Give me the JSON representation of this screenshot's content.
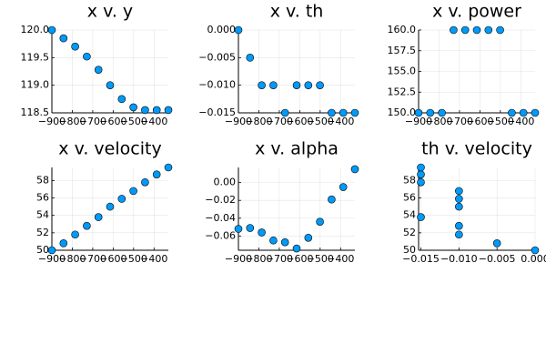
{
  "chart_data": [
    {
      "type": "scatter",
      "title": "x v. y",
      "color": "#009af9",
      "grid": true,
      "x": [
        -900,
        -843,
        -786,
        -729,
        -672,
        -615,
        -558,
        -501,
        -444,
        -387,
        -330
      ],
      "values": [
        120,
        119.85,
        119.7,
        119.52,
        119.28,
        119.0,
        118.75,
        118.6,
        118.55,
        118.55,
        118.55
      ],
      "xlim": [
        -900,
        -330
      ],
      "ylim": [
        118.5,
        120
      ],
      "xticks": [
        {
          "value": -900,
          "label": "−900"
        },
        {
          "value": -800,
          "label": "−800"
        },
        {
          "value": -700,
          "label": "−700"
        },
        {
          "value": -600,
          "label": "−600"
        },
        {
          "value": -500,
          "label": "−500"
        },
        {
          "value": -400,
          "label": "−400"
        }
      ],
      "yticks": [
        118.5,
        {
          "value": 119,
          "label": "119.0"
        },
        119.5,
        {
          "value": 120,
          "label": "120.0"
        }
      ]
    },
    {
      "type": "scatter",
      "title": "x v. th",
      "color": "#009af9",
      "grid": true,
      "x": [
        -900,
        -843,
        -786,
        -729,
        -672,
        -615,
        -558,
        -501,
        -444,
        -387,
        -330
      ],
      "values": [
        0,
        -0.005,
        -0.01,
        -0.01,
        -0.015,
        -0.01,
        -0.01,
        -0.01,
        -0.015,
        -0.015,
        -0.015
      ],
      "xlim": [
        -900,
        -330
      ],
      "ylim": [
        -0.015,
        0
      ],
      "xticks": [
        {
          "value": -900,
          "label": "−900"
        },
        {
          "value": -800,
          "label": "−800"
        },
        {
          "value": -700,
          "label": "−700"
        },
        {
          "value": -600,
          "label": "−600"
        },
        {
          "value": -500,
          "label": "−500"
        },
        {
          "value": -400,
          "label": "−400"
        }
      ],
      "yticks": [
        {
          "value": 0,
          "label": "0.000"
        },
        {
          "value": -0.005,
          "label": "−0.005"
        },
        {
          "value": -0.01,
          "label": "−0.010"
        },
        {
          "value": -0.015,
          "label": "−0.015"
        }
      ]
    },
    {
      "type": "scatter",
      "title": "x v. power",
      "color": "#009af9",
      "grid": true,
      "x": [
        -900,
        -843,
        -786,
        -729,
        -672,
        -615,
        -558,
        -501,
        -444,
        -387,
        -330
      ],
      "values": [
        150,
        150,
        150,
        160,
        160,
        160,
        160,
        160,
        150,
        150,
        150
      ],
      "xlim": [
        -900,
        -330
      ],
      "ylim": [
        150,
        160
      ],
      "xticks": [
        {
          "value": -900,
          "label": "−900"
        },
        {
          "value": -800,
          "label": "−800"
        },
        {
          "value": -700,
          "label": "−700"
        },
        {
          "value": -600,
          "label": "−600"
        },
        {
          "value": -500,
          "label": "−500"
        },
        {
          "value": -400,
          "label": "−400"
        }
      ],
      "yticks": [
        {
          "value": 150,
          "label": "150.0"
        },
        152.5,
        {
          "value": 155,
          "label": "155.0"
        },
        157.5,
        {
          "value": 160,
          "label": "160.0"
        }
      ]
    },
    {
      "type": "scatter",
      "title": "x v. velocity",
      "color": "#009af9",
      "grid": true,
      "x": [
        -900,
        -843,
        -786,
        -729,
        -672,
        -615,
        -558,
        -501,
        -444,
        -387,
        -330
      ],
      "values": [
        50,
        50.8,
        51.8,
        52.8,
        53.8,
        55,
        55.9,
        56.8,
        57.8,
        58.7,
        59.5
      ],
      "xlim": [
        -900,
        -330
      ],
      "ylim": [
        50,
        59.5
      ],
      "xticks": [
        {
          "value": -900,
          "label": "−900"
        },
        {
          "value": -800,
          "label": "−800"
        },
        {
          "value": -700,
          "label": "−700"
        },
        {
          "value": -600,
          "label": "−600"
        },
        {
          "value": -500,
          "label": "−500"
        },
        {
          "value": -400,
          "label": "−400"
        }
      ],
      "yticks": [
        50,
        52,
        54,
        56,
        58
      ]
    },
    {
      "type": "scatter",
      "title": "x v. alpha",
      "color": "#009af9",
      "grid": true,
      "x": [
        -900,
        -843,
        -786,
        -729,
        -672,
        -615,
        -558,
        -501,
        -444,
        -387,
        -330
      ],
      "values": [
        -0.052,
        -0.051,
        -0.056,
        -0.065,
        -0.067,
        -0.074,
        -0.062,
        -0.044,
        -0.019,
        -0.005,
        0.015
      ],
      "xlim": [
        -900,
        -330
      ],
      "ylim": [
        -0.076,
        0.017
      ],
      "xticks": [
        {
          "value": -900,
          "label": "−900"
        },
        {
          "value": -800,
          "label": "−800"
        },
        {
          "value": -700,
          "label": "−700"
        },
        {
          "value": -600,
          "label": "−600"
        },
        {
          "value": -500,
          "label": "−500"
        },
        {
          "value": -400,
          "label": "−400"
        }
      ],
      "yticks": [
        {
          "value": -0.06,
          "label": "−0.06"
        },
        {
          "value": -0.04,
          "label": "−0.04"
        },
        {
          "value": -0.02,
          "label": "−0.02"
        },
        {
          "value": 0,
          "label": "0.00"
        }
      ]
    },
    {
      "type": "scatter",
      "title": "th v. velocity",
      "color": "#009af9",
      "grid": true,
      "x": [
        0,
        -0.005,
        -0.01,
        -0.01,
        -0.015,
        -0.01,
        -0.01,
        -0.01,
        -0.015,
        -0.015,
        -0.015
      ],
      "values": [
        50,
        50.8,
        51.8,
        52.8,
        53.8,
        55,
        55.9,
        56.8,
        57.8,
        58.7,
        59.5
      ],
      "xlim": [
        -0.0153,
        0
      ],
      "ylim": [
        50,
        59.5
      ],
      "xticks": [
        {
          "value": -0.015,
          "label": "−0.015"
        },
        {
          "value": -0.01,
          "label": "−0.010"
        },
        {
          "value": -0.005,
          "label": "−0.005"
        },
        {
          "value": 0,
          "label": "0.000"
        }
      ],
      "yticks": [
        50,
        52,
        54,
        56,
        58
      ]
    }
  ]
}
